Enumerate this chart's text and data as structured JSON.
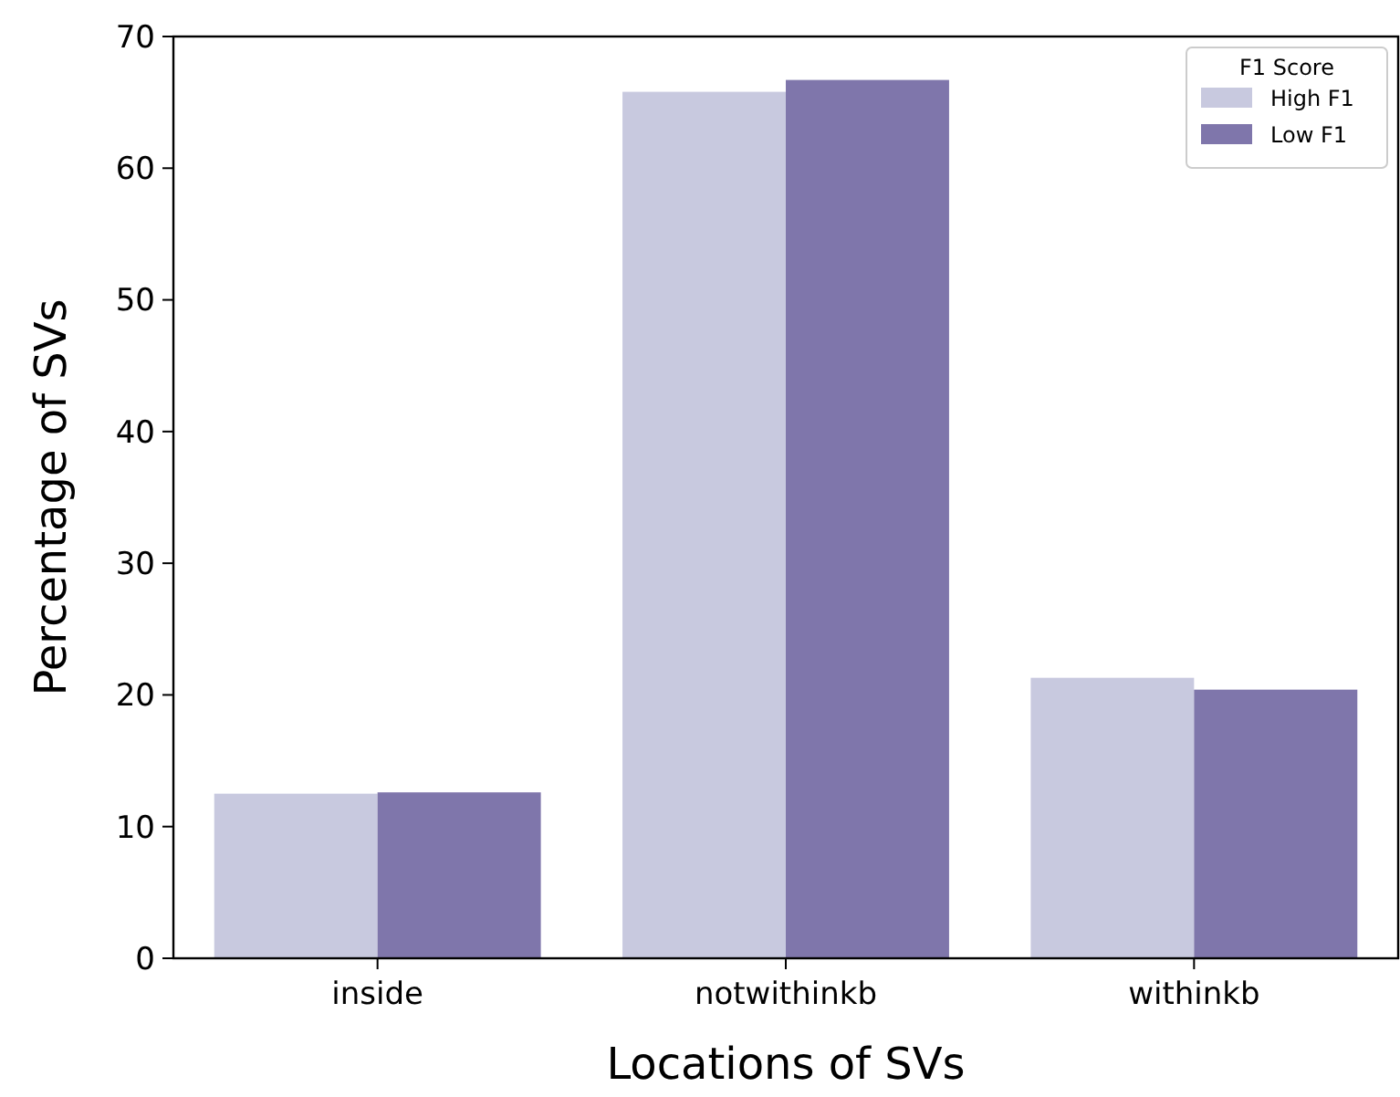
{
  "chart_data": {
    "type": "bar",
    "xlabel": "Locations of SVs",
    "ylabel": "Percentage of SVs",
    "legend_title": "F1 Score",
    "categories": [
      "inside",
      "notwithinkb",
      "withinkb"
    ],
    "series": [
      {
        "name": "High F1",
        "color": "#c8c9df",
        "values": [
          12.5,
          65.8,
          21.3
        ]
      },
      {
        "name": "Low F1",
        "color": "#7f76ab",
        "values": [
          12.6,
          66.7,
          20.4
        ]
      }
    ],
    "ylim": [
      0,
      70
    ],
    "yticks": [
      0,
      10,
      20,
      30,
      40,
      50,
      60,
      70
    ],
    "grid": false,
    "legend": "top right"
  }
}
